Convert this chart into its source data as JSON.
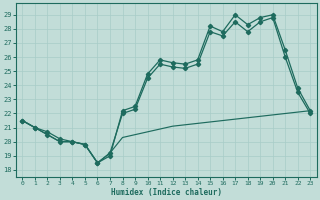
{
  "xlabel": "Humidex (Indice chaleur)",
  "bg_color": "#c2ddd8",
  "line_color": "#1e6b5e",
  "grid_color": "#a8ccc8",
  "spine_color": "#1e6b5e",
  "xlim": [
    -0.5,
    23.5
  ],
  "ylim": [
    17.5,
    29.8
  ],
  "xticks": [
    0,
    1,
    2,
    3,
    4,
    5,
    6,
    7,
    8,
    9,
    10,
    11,
    12,
    13,
    14,
    15,
    16,
    17,
    18,
    19,
    20,
    21,
    22,
    23
  ],
  "yticks": [
    18,
    19,
    20,
    21,
    22,
    23,
    24,
    25,
    26,
    27,
    28,
    29
  ],
  "line1_x": [
    0,
    1,
    2,
    3,
    4,
    5,
    6,
    7,
    8,
    9,
    10,
    11,
    12,
    13,
    14,
    15,
    16,
    17,
    18,
    19,
    20,
    21,
    22,
    23
  ],
  "line1_y": [
    21.5,
    21.0,
    20.7,
    20.2,
    20.0,
    19.8,
    18.5,
    19.0,
    22.2,
    22.5,
    24.8,
    25.8,
    25.6,
    25.5,
    25.8,
    28.2,
    27.8,
    29.0,
    28.3,
    28.8,
    29.0,
    26.5,
    23.8,
    22.2
  ],
  "line2_x": [
    0,
    1,
    2,
    3,
    4,
    5,
    6,
    7,
    8,
    9,
    10,
    11,
    12,
    13,
    14,
    15,
    16,
    17,
    18,
    19,
    20,
    21,
    22,
    23
  ],
  "line2_y": [
    21.5,
    21.0,
    20.5,
    20.0,
    20.0,
    19.8,
    18.5,
    19.2,
    22.0,
    22.3,
    24.5,
    25.5,
    25.3,
    25.2,
    25.5,
    27.8,
    27.5,
    28.5,
    27.8,
    28.5,
    28.8,
    26.0,
    23.5,
    22.0
  ],
  "line3_x": [
    0,
    1,
    2,
    3,
    4,
    5,
    6,
    7,
    8,
    9,
    10,
    11,
    12,
    13,
    14,
    15,
    16,
    17,
    18,
    19,
    20,
    21,
    22,
    23
  ],
  "line3_y": [
    21.5,
    21.0,
    20.5,
    20.0,
    20.0,
    19.8,
    18.5,
    19.2,
    20.3,
    20.5,
    20.7,
    20.9,
    21.1,
    21.2,
    21.3,
    21.4,
    21.5,
    21.6,
    21.7,
    21.8,
    21.9,
    22.0,
    22.1,
    22.2
  ]
}
